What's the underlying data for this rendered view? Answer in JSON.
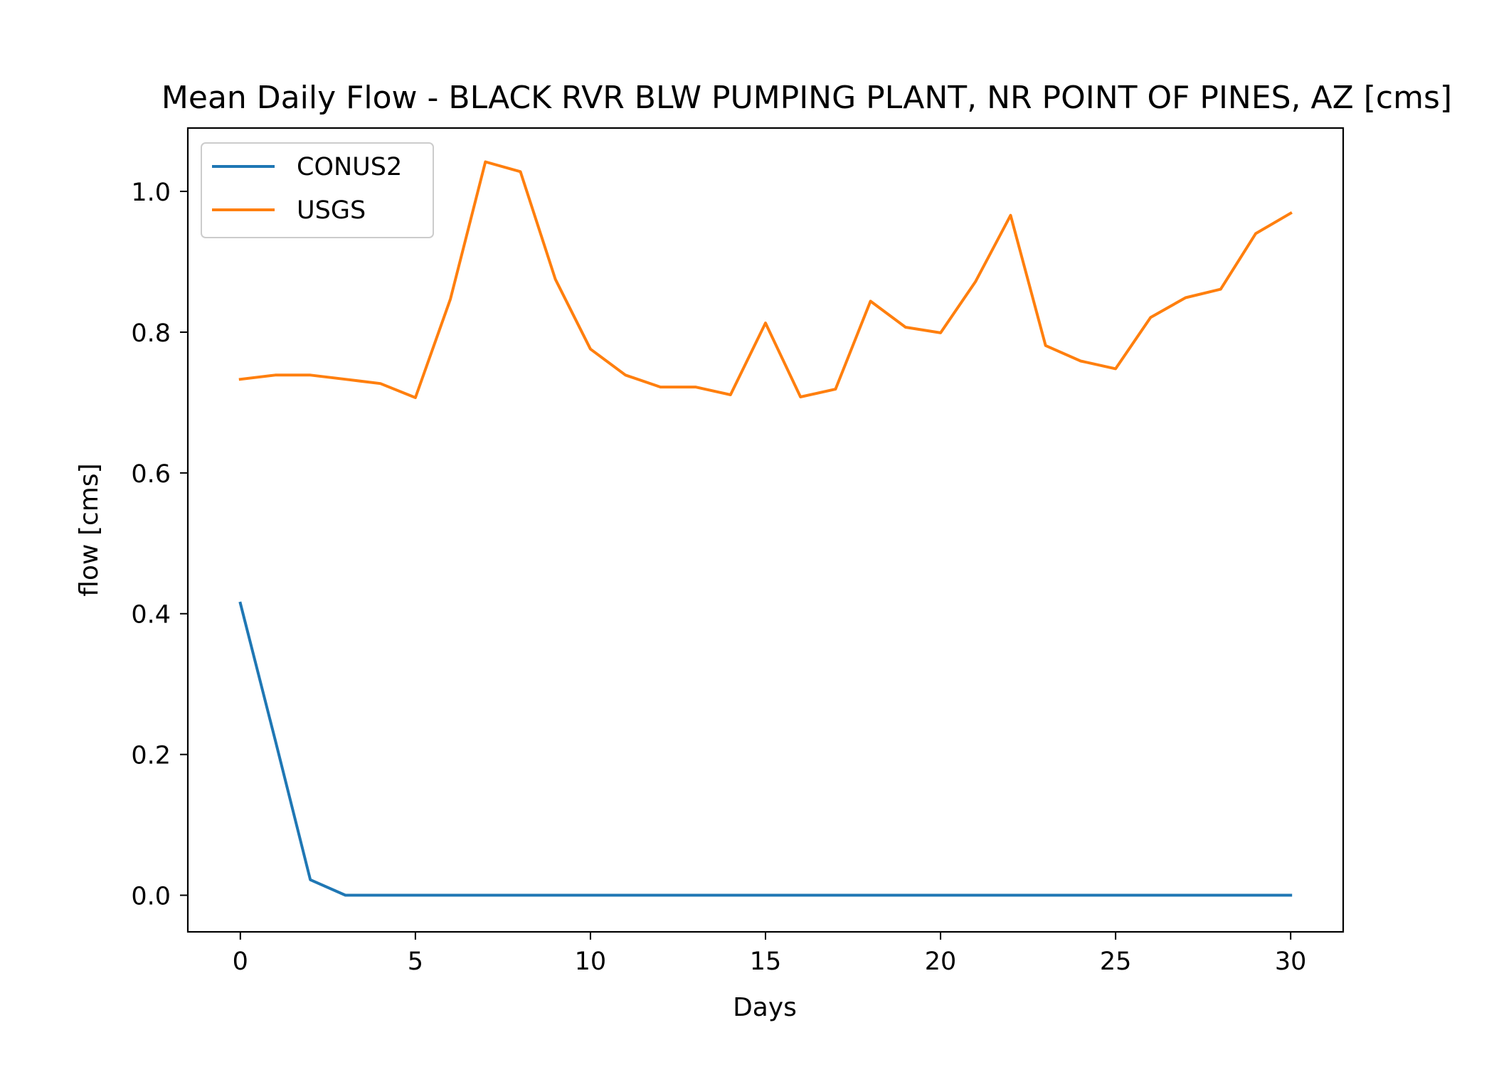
{
  "chart_data": {
    "type": "line",
    "title": "Mean Daily Flow - BLACK RVR BLW PUMPING PLANT, NR POINT OF PINES, AZ [cms]",
    "xlabel": "Days",
    "ylabel": "flow [cms]",
    "xlim": [
      -1.5,
      31.5
    ],
    "ylim": [
      -0.052,
      1.09
    ],
    "x_ticks": [
      0,
      5,
      10,
      15,
      20,
      25,
      30
    ],
    "y_ticks": [
      0.0,
      0.2,
      0.4,
      0.6,
      0.8,
      1.0
    ],
    "x_tick_labels": [
      "0",
      "5",
      "10",
      "15",
      "20",
      "25",
      "30"
    ],
    "y_tick_labels": [
      "0.0",
      "0.2",
      "0.4",
      "0.6",
      "0.8",
      "1.0"
    ],
    "grid": false,
    "legend_position": "top-left",
    "x": [
      0,
      1,
      2,
      3,
      4,
      5,
      6,
      7,
      8,
      9,
      10,
      11,
      12,
      13,
      14,
      15,
      16,
      17,
      18,
      19,
      20,
      21,
      22,
      23,
      24,
      25,
      26,
      27,
      28,
      29,
      30
    ],
    "series": [
      {
        "name": "CONUS2",
        "color": "#1f77b4",
        "values": [
          0.415,
          0.22,
          0.022,
          0.0,
          0.0,
          0.0,
          0.0,
          0.0,
          0.0,
          0.0,
          0.0,
          0.0,
          0.0,
          0.0,
          0.0,
          0.0,
          0.0,
          0.0,
          0.0,
          0.0,
          0.0,
          0.0,
          0.0,
          0.0,
          0.0,
          0.0,
          0.0,
          0.0,
          0.0,
          0.0,
          0.0
        ]
      },
      {
        "name": "USGS",
        "color": "#ff7f0e",
        "values": [
          0.733,
          0.739,
          0.739,
          0.733,
          0.727,
          0.707,
          0.847,
          1.042,
          1.028,
          0.875,
          0.776,
          0.739,
          0.722,
          0.722,
          0.711,
          0.813,
          0.708,
          0.719,
          0.844,
          0.807,
          0.799,
          0.872,
          0.966,
          0.781,
          0.759,
          0.748,
          0.821,
          0.849,
          0.861,
          0.94,
          0.969
        ]
      }
    ]
  }
}
